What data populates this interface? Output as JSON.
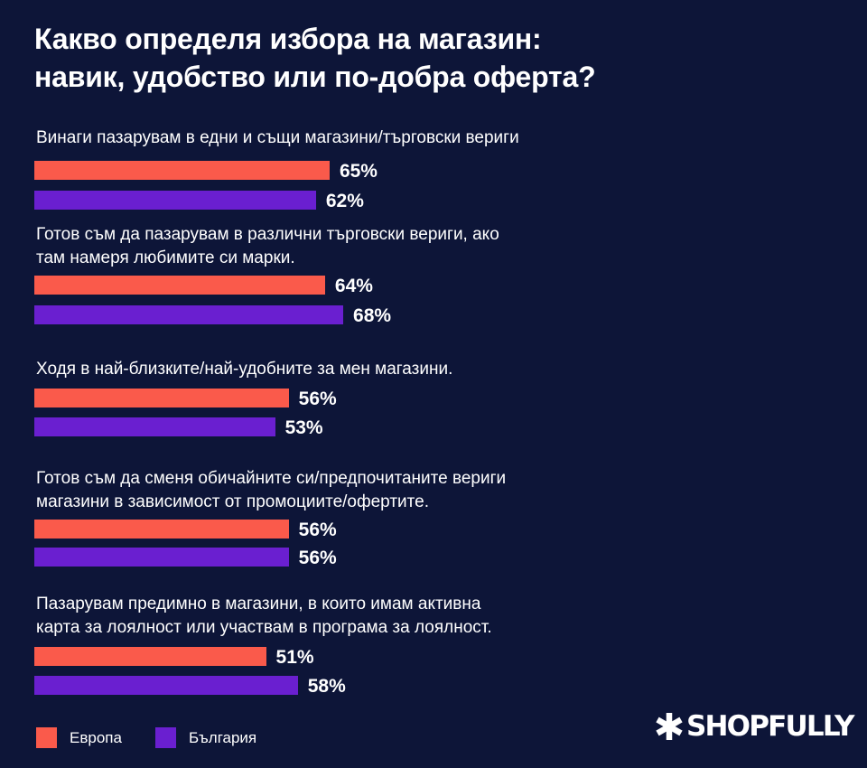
{
  "title": {
    "line1": "Какво определя избора на магазин:",
    "line2": "навик, удобство или по-добра оферта?"
  },
  "colors": {
    "background": "#0d1538",
    "europe": "#fa5a4b",
    "bulgaria": "#6a1fd0"
  },
  "legend": {
    "europe": "Европа",
    "bulgaria": "България"
  },
  "logo": {
    "icon": "asterisk-icon",
    "text": "SHOPFULLY"
  },
  "chart_data": {
    "type": "bar",
    "orientation": "horizontal",
    "title": "Какво определя избора на магазин: навик, удобство или по-добра оферта?",
    "categories": [
      "Винаги пазарувам в едни и същи магазини/търговски вериги",
      "Готов съм да пазарувам в различни търговски вериги, ако там намеря любимите си марки.",
      "Ходя в най-близките/най-удобните за мен магазини.",
      "Готов съм да сменя обичайните си/предпочитаните вериги магазини в зависимост от промоциите/офертите.",
      "Пазарувам предимно в магазини, в които имам активна карта за лоялност или участвам в програма за лоялност."
    ],
    "label_lines": [
      [
        "Винаги пазарувам в едни и същи магазини/търговски вериги"
      ],
      [
        "Готов съм да пазарувам в различни търговски вериги, ако",
        "там намеря любимите си марки."
      ],
      [
        "Ходя в най-близките/най-удобните за мен магазини."
      ],
      [
        "Готов съм да сменя обичайните си/предпочитаните вериги",
        "магазини в зависимост от промоциите/офертите."
      ],
      [
        "Пазарувам предимно в магазини, в които имам активна",
        "карта за лоялност или участвам в програма за лоялност."
      ]
    ],
    "series": [
      {
        "name": "Европа",
        "color": "#fa5a4b",
        "values": [
          65,
          64,
          56,
          56,
          51
        ],
        "labels": [
          "65%",
          "64%",
          "56%",
          "56%",
          "51%"
        ]
      },
      {
        "name": "България",
        "color": "#6a1fd0",
        "values": [
          62,
          68,
          53,
          56,
          58
        ],
        "labels": [
          "62%",
          "68%",
          "53%",
          "56%",
          "58%"
        ]
      }
    ],
    "unit": "%",
    "xlim": [
      0,
      100
    ],
    "legend_position": "bottom-left",
    "grid": false
  }
}
